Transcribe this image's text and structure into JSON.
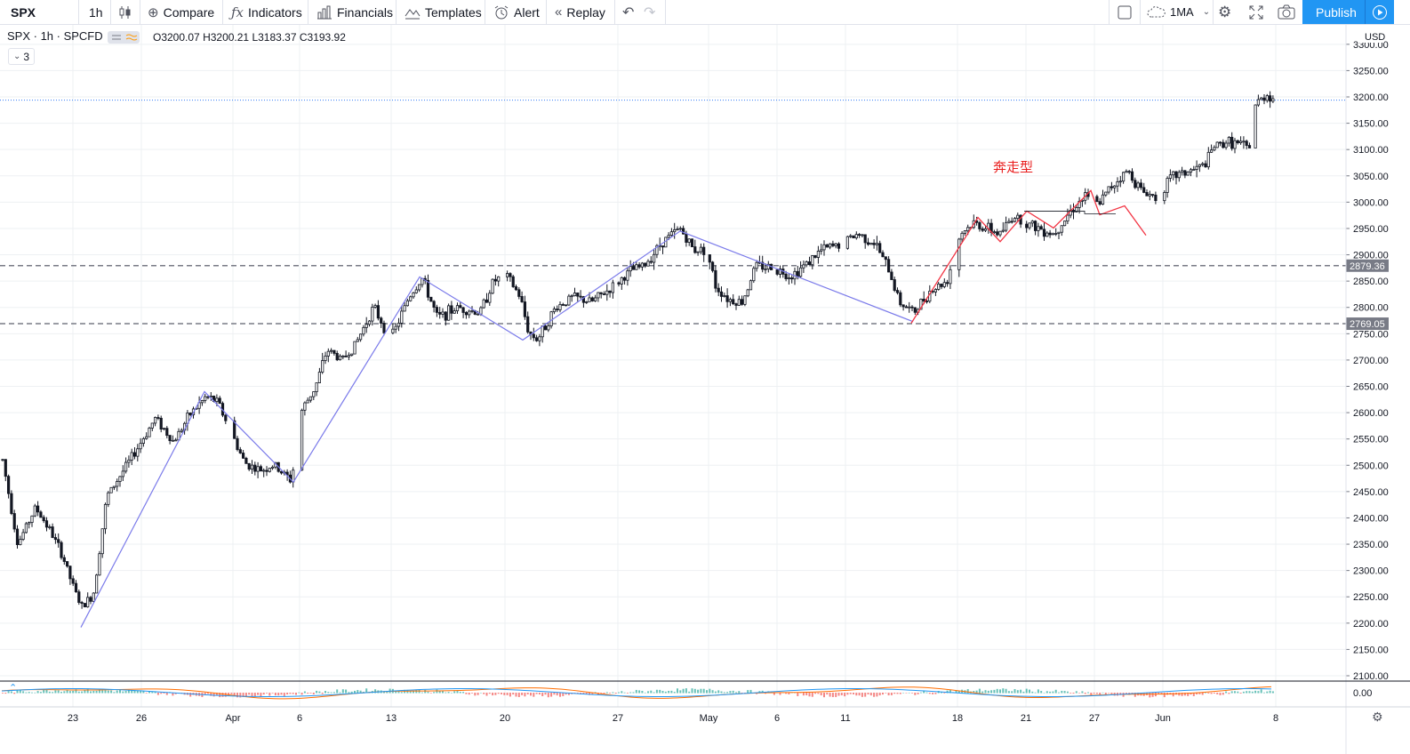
{
  "toolbar": {
    "symbol": "SPX",
    "interval": "1h",
    "compare": "Compare",
    "indicators": "Indicators",
    "financials": "Financials",
    "templates": "Templates",
    "alert": "Alert",
    "replay": "Replay",
    "ma_label": "1MA",
    "publish": "Publish"
  },
  "legend": {
    "title": "SPX · 1h · SPCFD",
    "open": "O3200.07",
    "high": "H3200.21",
    "low": "L3183.37",
    "close": "C3193.92",
    "collapse_count": "3"
  },
  "price_axis": {
    "currency": "USD",
    "levels": [
      "3300.00",
      "3250.00",
      "3200.00",
      "3150.00",
      "3100.00",
      "3050.00",
      "3000.00",
      "2950.00",
      "2900.00",
      "2850.00",
      "2800.00",
      "2750.00",
      "2700.00",
      "2650.00",
      "2600.00",
      "2550.00",
      "2500.00",
      "2450.00",
      "2400.00",
      "2350.00",
      "2300.00",
      "2250.00",
      "2200.00",
      "2150.00",
      "2100.00"
    ],
    "indicator_level": "0.00",
    "horizontal_lines": [
      "2879.36",
      "2769.05"
    ],
    "line_color": "#787b86",
    "axis_bg": "#787b86"
  },
  "time_axis": {
    "labels": [
      "23",
      "26",
      "Apr",
      "6",
      "13",
      "20",
      "27",
      "May",
      "6",
      "11",
      "18",
      "21",
      "27",
      "Jun",
      "8"
    ]
  },
  "annotation": {
    "text": "奔走型",
    "color": "#e91e1e"
  },
  "colors": {
    "blue_zigzag": "#7b7bea",
    "red_zigzag": "#f23645",
    "candle": "#131722",
    "grid": "#eef0f3"
  },
  "chart_data": {
    "type": "candlestick",
    "symbol": "SPX",
    "ylim": [
      2075,
      3320
    ],
    "blue_zigzag_prices": [
      2192,
      2640,
      2468,
      2858,
      2738,
      2945,
      2773
    ],
    "red_zigzag_prices": [
      2770,
      2971,
      2925,
      2983,
      2951,
      3022,
      2976,
      2993,
      2937
    ],
    "black_box_prices": [
      2983,
      2978
    ]
  }
}
